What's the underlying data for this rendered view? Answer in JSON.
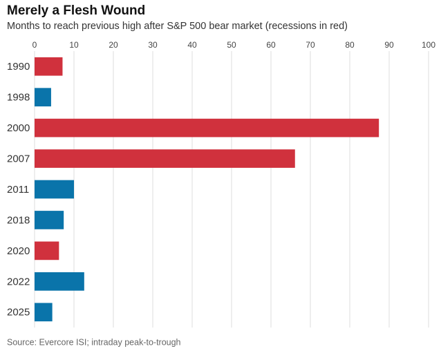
{
  "chart_data": {
    "type": "bar",
    "orientation": "horizontal",
    "title": "Merely a Flesh Wound",
    "subtitle": "Months to reach previous high after S&P 500 bear market (recessions in red)",
    "source": "Source: Evercore ISI; intraday peak-to-trough",
    "categories": [
      "1990",
      "1998",
      "2000",
      "2007",
      "2011",
      "2018",
      "2020",
      "2022",
      "2025"
    ],
    "values": [
      7.1,
      4.2,
      87.4,
      66.1,
      10.0,
      7.4,
      6.2,
      12.6,
      4.5
    ],
    "colors": [
      "#d0313d",
      "#0a74aa",
      "#d0313d",
      "#d0313d",
      "#0a74aa",
      "#0a74aa",
      "#d0313d",
      "#0a74aa",
      "#0a74aa"
    ],
    "xlim": [
      0,
      100
    ],
    "xticks": [
      0,
      10,
      20,
      30,
      40,
      50,
      60,
      70,
      80,
      90,
      100
    ],
    "grid": true
  }
}
